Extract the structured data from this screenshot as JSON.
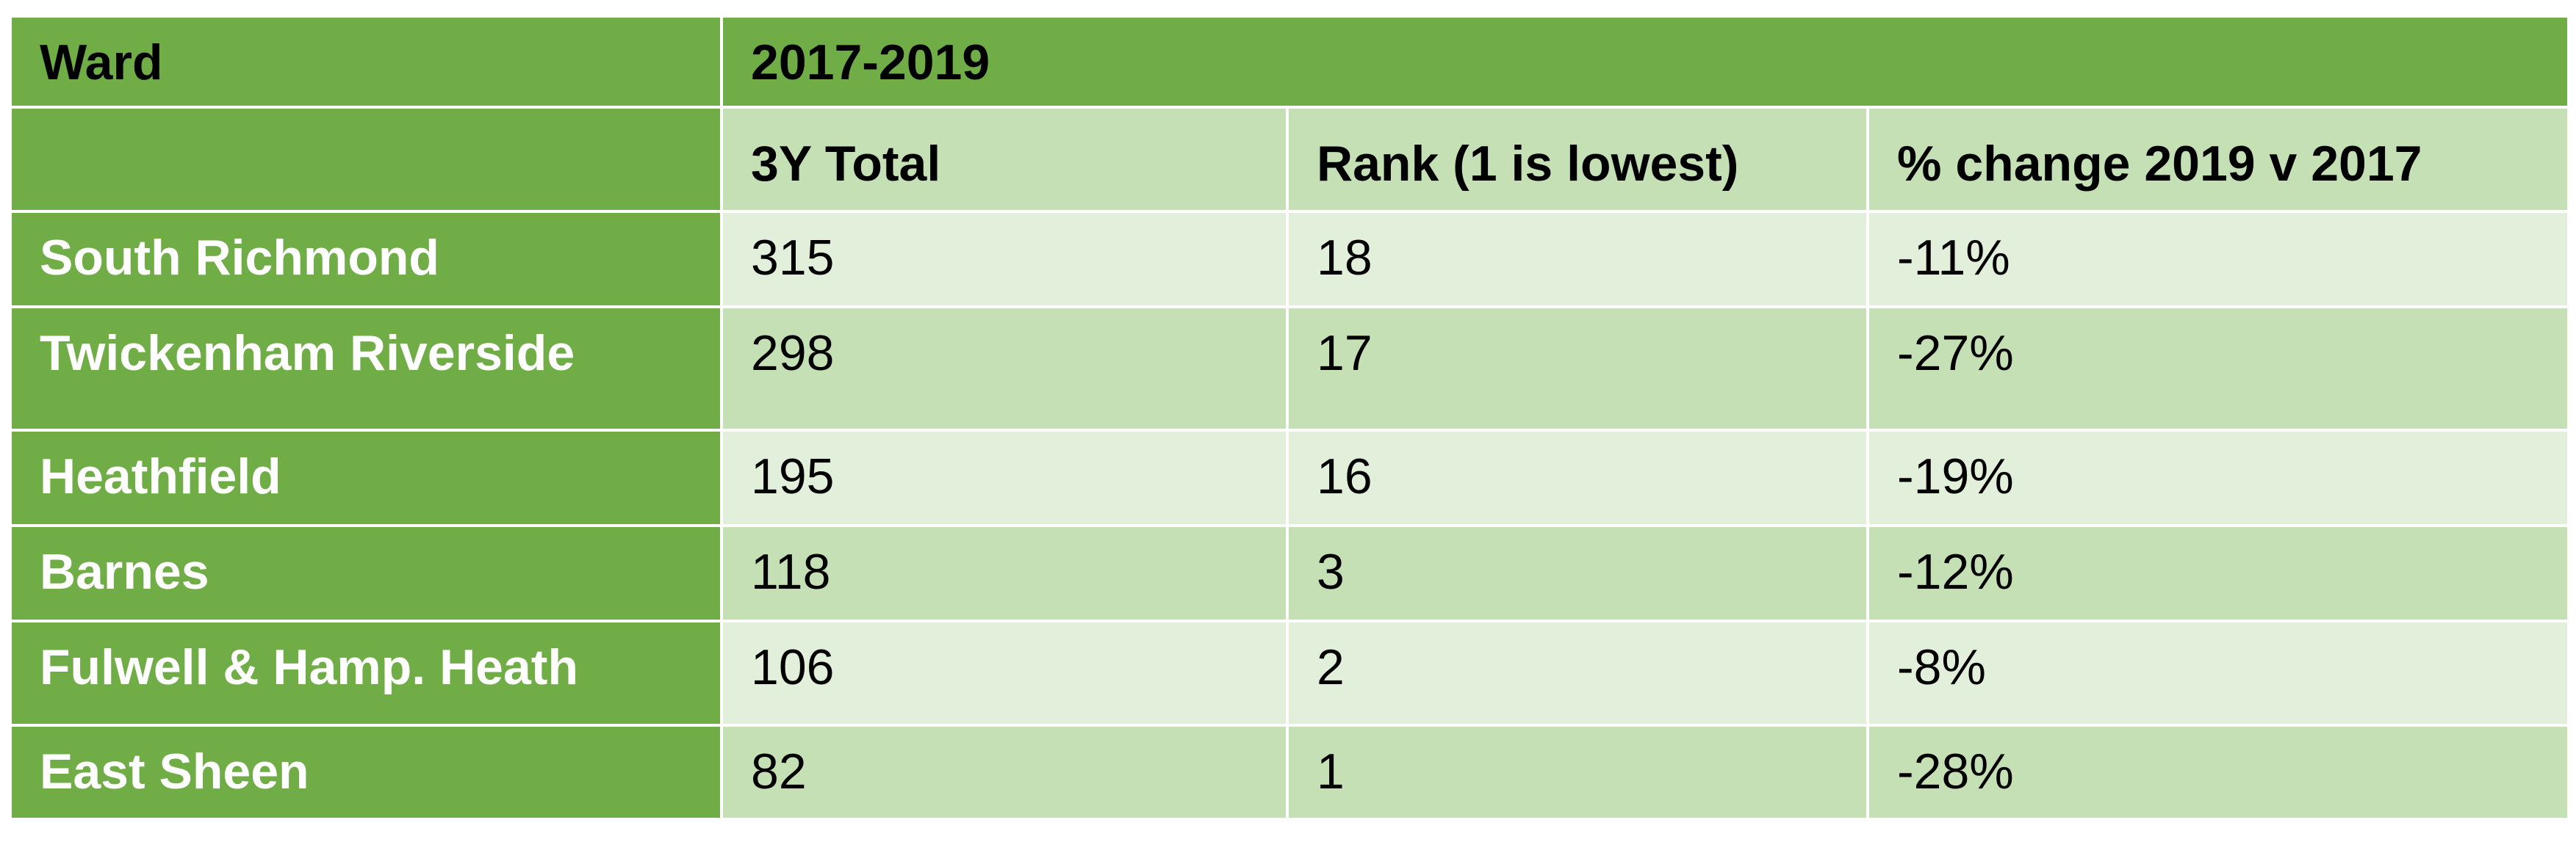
{
  "chart_data": {
    "type": "table",
    "header": {
      "ward_label": "Ward",
      "period_label": "2017-2019"
    },
    "columns": [
      "",
      "3Y Total",
      "Rank (1 is lowest)",
      "% change 2019 v 2017"
    ],
    "rows": [
      {
        "ward": "South Richmond",
        "total": "315",
        "rank": "18",
        "change": "-11%"
      },
      {
        "ward": "Twickenham Riverside",
        "total": "298",
        "rank": "17",
        "change": "-27%"
      },
      {
        "ward": "Heathfield",
        "total": "195",
        "rank": "16",
        "change": "-19%"
      },
      {
        "ward": "Barnes",
        "total": "118",
        "rank": "3",
        "change": "-12%"
      },
      {
        "ward": "Fulwell & Hamp. Heath",
        "total": "106",
        "rank": "2",
        "change": "-8%"
      },
      {
        "ward": "East Sheen",
        "total": "82",
        "rank": "1",
        "change": "-28%"
      }
    ],
    "colors": {
      "header_green": "#70ad47",
      "band_dark": "#c5e0b4",
      "band_light": "#e2efda"
    }
  }
}
